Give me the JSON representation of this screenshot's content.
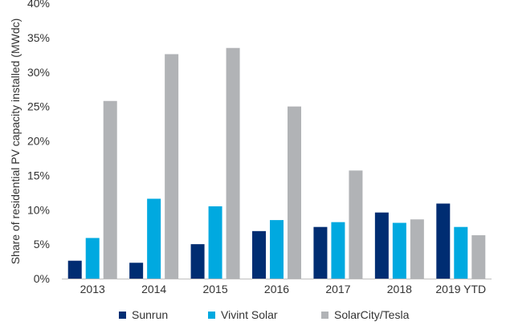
{
  "chart_data": {
    "type": "bar",
    "title": "",
    "xlabel": "",
    "ylabel": "Share of residential PV capacity installed (MWdc)",
    "categories": [
      "2013",
      "2014",
      "2015",
      "2016",
      "2017",
      "2018",
      "2019 YTD"
    ],
    "ylim": [
      0,
      40
    ],
    "yticks": [
      0,
      5,
      10,
      15,
      20,
      25,
      30,
      35,
      40
    ],
    "ytick_labels": [
      "0%",
      "5%",
      "10%",
      "15%",
      "20%",
      "25%",
      "30%",
      "35%",
      "40%"
    ],
    "grid": false,
    "legend_position": "bottom",
    "series": [
      {
        "name": "Sunrun",
        "color": "#002d72",
        "values": [
          2.6,
          2.3,
          5.0,
          6.9,
          7.5,
          9.6,
          10.9
        ]
      },
      {
        "name": "Vivint Solar",
        "color": "#00a9e0",
        "values": [
          5.9,
          11.6,
          10.5,
          8.5,
          8.2,
          8.1,
          7.5
        ]
      },
      {
        "name": "SolarCity/Tesla",
        "color": "#b1b3b6",
        "values": [
          25.8,
          32.6,
          33.5,
          25.0,
          15.7,
          8.6,
          6.3
        ]
      }
    ]
  }
}
